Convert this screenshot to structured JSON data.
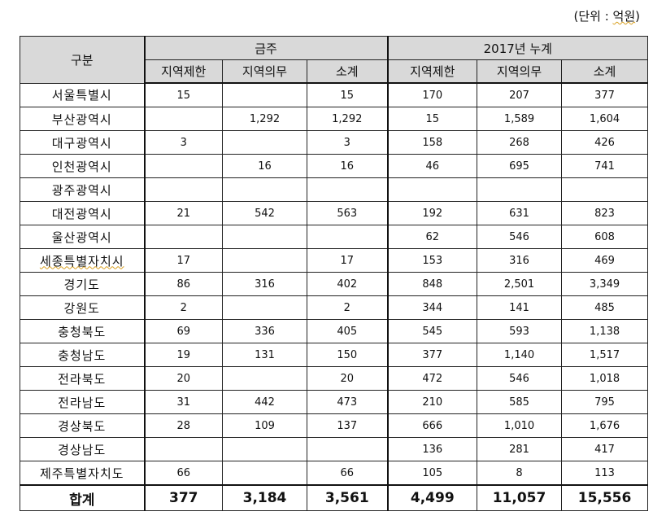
{
  "unit_note": {
    "prefix": "(단위 : ",
    "unit": "억원",
    "suffix": ")"
  },
  "headers": {
    "category": "구분",
    "group1": "금주",
    "group2": "2017년 누계",
    "sub": [
      "지역제한",
      "지역의무",
      "소계",
      "지역제한",
      "지역의무",
      "소계"
    ]
  },
  "rows": [
    {
      "region": "서울특별시",
      "values": [
        "15",
        "",
        "15",
        "170",
        "207",
        "377"
      ]
    },
    {
      "region": "부산광역시",
      "values": [
        "",
        "1,292",
        "1,292",
        "15",
        "1,589",
        "1,604"
      ]
    },
    {
      "region": "대구광역시",
      "values": [
        "3",
        "",
        "3",
        "158",
        "268",
        "426"
      ]
    },
    {
      "region": "인천광역시",
      "values": [
        "",
        "16",
        "16",
        "46",
        "695",
        "741"
      ]
    },
    {
      "region": "광주광역시",
      "values": [
        "",
        "",
        "",
        "",
        "",
        ""
      ]
    },
    {
      "region": "대전광역시",
      "values": [
        "21",
        "542",
        "563",
        "192",
        "631",
        "823"
      ]
    },
    {
      "region": "울산광역시",
      "values": [
        "",
        "",
        "",
        "62",
        "546",
        "608"
      ]
    },
    {
      "region": "세종특별자치시",
      "values": [
        "17",
        "",
        "17",
        "153",
        "316",
        "469"
      ]
    },
    {
      "region": "경기도",
      "values": [
        "86",
        "316",
        "402",
        "848",
        "2,501",
        "3,349"
      ]
    },
    {
      "region": "강원도",
      "values": [
        "2",
        "",
        "2",
        "344",
        "141",
        "485"
      ]
    },
    {
      "region": "충청북도",
      "values": [
        "69",
        "336",
        "405",
        "545",
        "593",
        "1,138"
      ]
    },
    {
      "region": "충청남도",
      "values": [
        "19",
        "131",
        "150",
        "377",
        "1,140",
        "1,517"
      ]
    },
    {
      "region": "전라북도",
      "values": [
        "20",
        "",
        "20",
        "472",
        "546",
        "1,018"
      ]
    },
    {
      "region": "전라남도",
      "values": [
        "31",
        "442",
        "473",
        "210",
        "585",
        "795"
      ]
    },
    {
      "region": "경상북도",
      "values": [
        "28",
        "109",
        "137",
        "666",
        "1,010",
        "1,676"
      ]
    },
    {
      "region": "경상남도",
      "values": [
        "",
        "",
        "",
        "136",
        "281",
        "417"
      ]
    },
    {
      "region": "제주특별자치도",
      "values": [
        "66",
        "",
        "66",
        "105",
        "8",
        "113"
      ]
    }
  ],
  "total": {
    "label": "합계",
    "values": [
      "377",
      "3,184",
      "3,561",
      "4,499",
      "11,057",
      "15,556"
    ]
  }
}
